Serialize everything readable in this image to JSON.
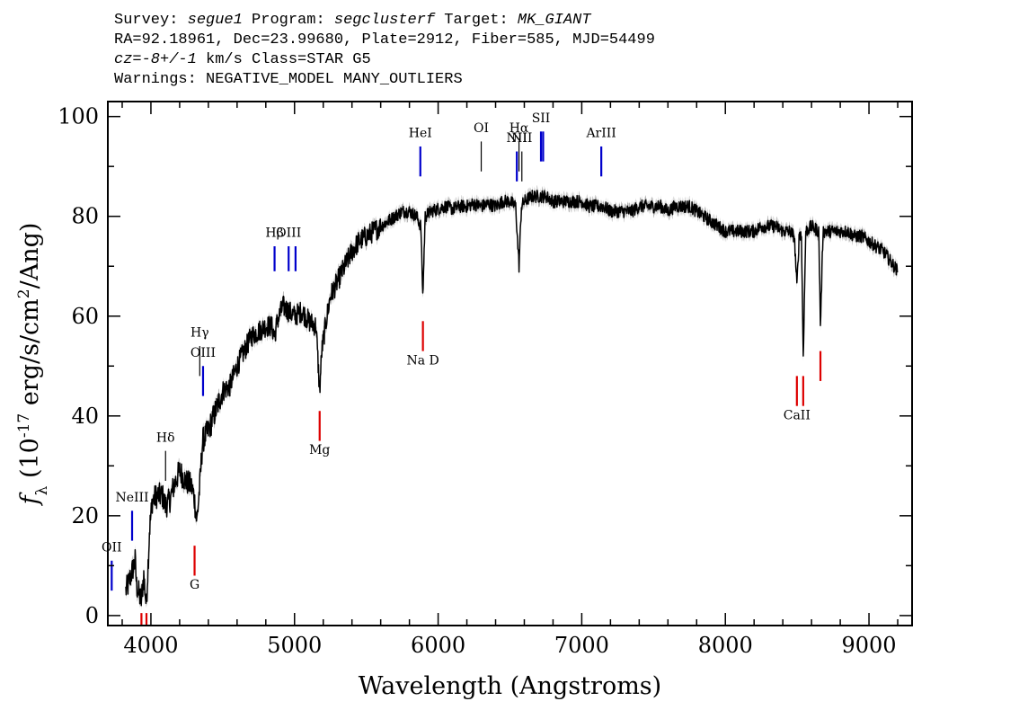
{
  "header": {
    "survey_label": "Survey:",
    "survey": "segue1",
    "program_label": "Program:",
    "program": "segclusterf",
    "target_label": "Target:",
    "target": "MK_GIANT",
    "line2": "RA=92.18961, Dec=23.99680, Plate=2912, Fiber=585, MJD=54499",
    "cz_label": "cz=",
    "cz_value": "-8+/-1",
    "cz_rest": " km/s Class=STAR G5",
    "line4": "Warnings: NEGATIVE_MODEL MANY_OUTLIERS"
  },
  "chart_data": {
    "type": "line",
    "xlabel": "Wavelength (Angstroms)",
    "ylabel": "f_λ (10^-17 erg/s/cm^2/Ang)",
    "xlim": [
      3700,
      9300
    ],
    "ylim": [
      -2,
      103
    ],
    "xticks": [
      4000,
      5000,
      6000,
      7000,
      8000,
      9000
    ],
    "yticks": [
      0,
      20,
      40,
      60,
      80,
      100
    ],
    "colors": {
      "spectrum": "#000000",
      "error": "#b0b0b0",
      "emission": "#0000cc",
      "absorption": "#dd0000",
      "weak": "#000000"
    },
    "series": [
      {
        "points": [
          [
            3825,
            5
          ],
          [
            3840,
            6
          ],
          [
            3870,
            9
          ],
          [
            3890,
            11
          ],
          [
            3900,
            6
          ],
          [
            3920,
            4
          ],
          [
            3933,
            3
          ],
          [
            3950,
            8
          ],
          [
            3968,
            2
          ],
          [
            3990,
            17
          ],
          [
            4010,
            23
          ],
          [
            4040,
            24
          ],
          [
            4080,
            24
          ],
          [
            4101,
            22
          ],
          [
            4130,
            23
          ],
          [
            4160,
            26
          ],
          [
            4200,
            29
          ],
          [
            4240,
            27
          ],
          [
            4280,
            26
          ],
          [
            4300,
            24
          ],
          [
            4320,
            19
          ],
          [
            4340,
            26
          ],
          [
            4360,
            35
          ],
          [
            4400,
            37
          ],
          [
            4450,
            41
          ],
          [
            4500,
            45
          ],
          [
            4550,
            46
          ],
          [
            4600,
            50
          ],
          [
            4650,
            53
          ],
          [
            4700,
            56
          ],
          [
            4750,
            57
          ],
          [
            4800,
            58
          ],
          [
            4840,
            58
          ],
          [
            4861,
            56
          ],
          [
            4880,
            59
          ],
          [
            4920,
            62
          ],
          [
            4960,
            61
          ],
          [
            5000,
            60
          ],
          [
            5050,
            61
          ],
          [
            5100,
            59
          ],
          [
            5150,
            58
          ],
          [
            5175,
            45
          ],
          [
            5190,
            53
          ],
          [
            5220,
            59
          ],
          [
            5250,
            64
          ],
          [
            5300,
            67
          ],
          [
            5350,
            70
          ],
          [
            5400,
            73
          ],
          [
            5450,
            75
          ],
          [
            5500,
            76
          ],
          [
            5550,
            77
          ],
          [
            5600,
            78
          ],
          [
            5650,
            79
          ],
          [
            5700,
            80
          ],
          [
            5750,
            81
          ],
          [
            5800,
            81
          ],
          [
            5850,
            80
          ],
          [
            5880,
            78
          ],
          [
            5893,
            64
          ],
          [
            5910,
            80
          ],
          [
            5950,
            81
          ],
          [
            6000,
            81.5
          ],
          [
            6050,
            82
          ],
          [
            6100,
            81.5
          ],
          [
            6150,
            82
          ],
          [
            6200,
            82
          ],
          [
            6250,
            82.5
          ],
          [
            6300,
            82
          ],
          [
            6350,
            82.5
          ],
          [
            6400,
            82
          ],
          [
            6450,
            83
          ],
          [
            6500,
            83
          ],
          [
            6540,
            82
          ],
          [
            6563,
            70
          ],
          [
            6580,
            82
          ],
          [
            6600,
            83
          ],
          [
            6650,
            84
          ],
          [
            6700,
            84
          ],
          [
            6750,
            84
          ],
          [
            6800,
            83
          ],
          [
            6850,
            83
          ],
          [
            6900,
            83
          ],
          [
            6950,
            83
          ],
          [
            7000,
            83
          ],
          [
            7050,
            82
          ],
          [
            7100,
            82
          ],
          [
            7150,
            82
          ],
          [
            7200,
            81
          ],
          [
            7250,
            81
          ],
          [
            7300,
            81
          ],
          [
            7350,
            81
          ],
          [
            7400,
            82
          ],
          [
            7450,
            82
          ],
          [
            7500,
            82
          ],
          [
            7550,
            82
          ],
          [
            7600,
            81
          ],
          [
            7650,
            82
          ],
          [
            7700,
            82
          ],
          [
            7750,
            82
          ],
          [
            7800,
            81
          ],
          [
            7850,
            80
          ],
          [
            7900,
            79
          ],
          [
            7950,
            78
          ],
          [
            8000,
            77
          ],
          [
            8050,
            77
          ],
          [
            8100,
            77
          ],
          [
            8150,
            77
          ],
          [
            8200,
            77
          ],
          [
            8250,
            78
          ],
          [
            8300,
            78
          ],
          [
            8350,
            78
          ],
          [
            8400,
            77
          ],
          [
            8450,
            77
          ],
          [
            8480,
            76
          ],
          [
            8498,
            66
          ],
          [
            8515,
            77
          ],
          [
            8530,
            76
          ],
          [
            8542,
            52
          ],
          [
            8560,
            77
          ],
          [
            8600,
            78
          ],
          [
            8650,
            77
          ],
          [
            8662,
            58
          ],
          [
            8680,
            77
          ],
          [
            8720,
            77
          ],
          [
            8760,
            77
          ],
          [
            8800,
            77
          ],
          [
            8850,
            77
          ],
          [
            8900,
            76
          ],
          [
            8950,
            76
          ],
          [
            9000,
            75
          ],
          [
            9050,
            74
          ],
          [
            9100,
            73
          ],
          [
            9150,
            71
          ],
          [
            9200,
            69
          ]
        ]
      }
    ],
    "lines": [
      {
        "label": "OII",
        "wave": 3727,
        "kind": "emission",
        "y_top": 11,
        "y_bot": 5,
        "label_y": 12.5
      },
      {
        "label": "NeIII",
        "wave": 3869,
        "kind": "emission",
        "y_top": 21,
        "y_bot": 15,
        "label_y": 22.5
      },
      {
        "label": "Hδ",
        "wave": 4102,
        "kind": "weak",
        "y_top": 33,
        "y_bot": 27,
        "label_y": 34.5
      },
      {
        "label": "Hγ",
        "wave": 4340,
        "kind": "weak",
        "y_top": 54,
        "y_bot": 48,
        "label_y": 55.5
      },
      {
        "label": "OIII",
        "wave": 4363,
        "kind": "emission",
        "y_top": 50,
        "y_bot": 44,
        "label_y": 51.5
      },
      {
        "label": "Hβ",
        "wave": 4861,
        "kind": "emission",
        "y_top": 74,
        "y_bot": 69,
        "label_y": 75.5
      },
      {
        "label": "OIII",
        "wave": 4959,
        "kind": "emission",
        "y_top": 74,
        "y_bot": 69,
        "label_y": 75.5
      },
      {
        "label": "",
        "wave": 5007,
        "kind": "emission",
        "y_top": 74,
        "y_bot": 69,
        "label_y": 75.5
      },
      {
        "label": "HeI",
        "wave": 5876,
        "kind": "emission",
        "y_top": 94,
        "y_bot": 88,
        "label_y": 95.5
      },
      {
        "label": "OI",
        "wave": 6300,
        "kind": "weak",
        "y_top": 95,
        "y_bot": 89,
        "label_y": 96.5
      },
      {
        "label": "NII",
        "wave": 6548,
        "kind": "emission",
        "y_top": 93,
        "y_bot": 87,
        "label_y": 94.5
      },
      {
        "label": "Hα",
        "wave": 6563,
        "kind": "weak",
        "y_top": 95,
        "y_bot": 89,
        "label_y": 96.5
      },
      {
        "label": "NII",
        "wave": 6583,
        "kind": "weak",
        "y_top": 93,
        "y_bot": 87,
        "label_y": 94.5
      },
      {
        "label": "SII",
        "wave": 6716,
        "kind": "emission",
        "y_top": 97,
        "y_bot": 91,
        "label_y": 98.5
      },
      {
        "label": "",
        "wave": 6731,
        "kind": "emission",
        "y_top": 97,
        "y_bot": 91,
        "label_y": 98.5
      },
      {
        "label": "ArIII",
        "wave": 7136,
        "kind": "emission",
        "y_top": 94,
        "y_bot": 88,
        "label_y": 95.5
      },
      {
        "label": "",
        "wave": 3934,
        "kind": "absorption",
        "y_top": 0.5,
        "y_bot": -2,
        "label_y": 0
      },
      {
        "label": "",
        "wave": 3969,
        "kind": "absorption",
        "y_top": 0.5,
        "y_bot": -2,
        "label_y": 0
      },
      {
        "label": "G",
        "wave": 4304,
        "kind": "absorption",
        "y_top": 14,
        "y_bot": 8,
        "label_y": 5
      },
      {
        "label": "Mg",
        "wave": 5175,
        "kind": "absorption",
        "y_top": 41,
        "y_bot": 35,
        "label_y": 32
      },
      {
        "label": "Na D",
        "wave": 5894,
        "kind": "absorption",
        "y_top": 59,
        "y_bot": 53,
        "label_y": 50
      },
      {
        "label": "CaII",
        "wave": 8498,
        "kind": "absorption",
        "y_top": 48,
        "y_bot": 42,
        "label_y": 39
      },
      {
        "label": "",
        "wave": 8542,
        "kind": "absorption",
        "y_top": 48,
        "y_bot": 42,
        "label_y": 39
      },
      {
        "label": "",
        "wave": 8662,
        "kind": "absorption",
        "y_top": 53,
        "y_bot": 47,
        "label_y": 44
      }
    ]
  }
}
